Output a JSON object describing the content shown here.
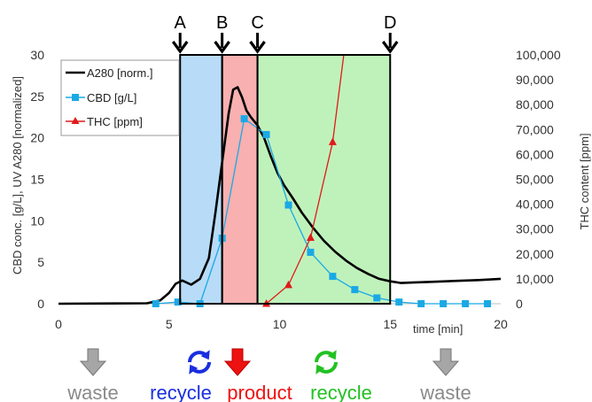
{
  "chart_data": {
    "type": "line",
    "xlabel": "time [min]",
    "ylabel_left": "CBD conc. [g/L], UV A280 [normalized]",
    "ylabel_right": "THC content [ppm]",
    "xlim": [
      0,
      20
    ],
    "ylim_left": [
      0,
      30
    ],
    "ylim_right": [
      0,
      100000
    ],
    "x_ticks": [
      0,
      5,
      10,
      15,
      20
    ],
    "y_ticks_left": [
      0,
      5,
      10,
      15,
      20,
      25,
      30
    ],
    "y_ticks_right": [
      "0",
      "10,000",
      "20,000",
      "30,000",
      "40,000",
      "50,000",
      "60,000",
      "70,000",
      "80,000",
      "90,000",
      "100,000"
    ],
    "legend": {
      "placement": "top-left",
      "entries": [
        "A280 [norm.]",
        "CBD [g/L]",
        "THC [ppm]"
      ]
    },
    "series": [
      {
        "name": "A280 [norm.]",
        "axis": "left",
        "color": "#000000",
        "marker": "none",
        "x": [
          0,
          4.0,
          4.6,
          5.0,
          5.3,
          5.6,
          6.0,
          6.4,
          6.8,
          7.1,
          7.3,
          7.5,
          7.7,
          7.9,
          8.1,
          8.3,
          8.5,
          8.7,
          9.0,
          9.3,
          9.6,
          9.9,
          10.2,
          10.6,
          11.0,
          11.5,
          12.0,
          12.5,
          13.0,
          13.5,
          14.0,
          14.5,
          15.0,
          15.5,
          16.0,
          17.0,
          18.0,
          19.0,
          20.0
        ],
        "y": [
          0,
          0.05,
          0.4,
          1.3,
          2.4,
          2.8,
          2.3,
          3.0,
          5.5,
          11.0,
          15.0,
          19.0,
          23.0,
          25.8,
          26.1,
          24.9,
          23.3,
          22.5,
          21.5,
          20.0,
          17.8,
          15.8,
          14.3,
          12.7,
          11.0,
          9.2,
          7.6,
          6.3,
          5.2,
          4.3,
          3.6,
          3.0,
          2.7,
          2.5,
          2.55,
          2.65,
          2.75,
          2.85,
          3.0
        ]
      },
      {
        "name": "CBD [g/L]",
        "axis": "left",
        "color": "#1aa9e5",
        "marker": "square",
        "x": [
          4.4,
          5.4,
          6.4,
          7.4,
          8.4,
          9.4,
          10.4,
          11.4,
          12.4,
          13.4,
          14.4,
          15.4,
          16.4,
          17.4,
          18.4,
          19.4
        ],
        "y": [
          0.0,
          0.2,
          0.0,
          7.9,
          22.3,
          20.4,
          11.9,
          6.2,
          3.3,
          1.7,
          0.7,
          0.2,
          0.0,
          0.0,
          0.0,
          0.0
        ]
      },
      {
        "name": "THC [ppm]",
        "axis": "right",
        "color": "#e11919",
        "marker": "triangle",
        "x": [
          9.4,
          10.4,
          11.4,
          12.4,
          12.9
        ],
        "y": [
          0,
          7500,
          26500,
          65000,
          100000
        ]
      }
    ],
    "markers": [
      {
        "label": "A",
        "x": 5.5
      },
      {
        "label": "B",
        "x": 7.4
      },
      {
        "label": "C",
        "x": 9.0
      },
      {
        "label": "D",
        "x": 15.0
      }
    ],
    "regions": [
      {
        "from": 5.5,
        "to": 7.4,
        "color": "#b8dcf8"
      },
      {
        "from": 7.4,
        "to": 9.0,
        "color": "#f8b0b0"
      },
      {
        "from": 9.0,
        "to": 15.0,
        "color": "#bff2bb"
      }
    ],
    "fractions": [
      {
        "label": "waste",
        "color": "#8a8a8a",
        "icon": "down-arrow-icon"
      },
      {
        "label": "recycle",
        "color": "#1a2ee0",
        "icon": "recycle-icon"
      },
      {
        "label": "product",
        "color": "#ee1111",
        "icon": "down-arrow-icon"
      },
      {
        "label": "recycle",
        "color": "#22c122",
        "icon": "recycle-icon"
      },
      {
        "label": "waste",
        "color": "#8a8a8a",
        "icon": "down-arrow-icon"
      }
    ]
  }
}
